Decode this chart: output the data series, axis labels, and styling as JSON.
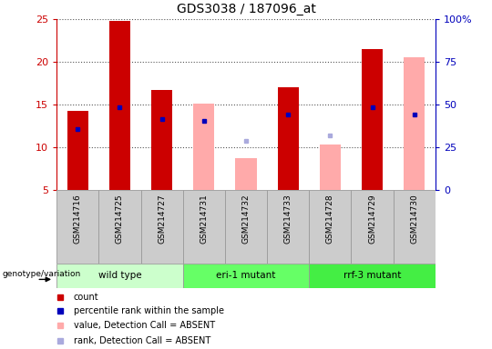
{
  "title": "GDS3038 / 187096_at",
  "samples": [
    "GSM214716",
    "GSM214725",
    "GSM214727",
    "GSM214731",
    "GSM214732",
    "GSM214733",
    "GSM214728",
    "GSM214729",
    "GSM214730"
  ],
  "count_values": [
    14.3,
    24.8,
    16.7,
    null,
    null,
    17.0,
    null,
    21.5,
    null
  ],
  "count_absent": [
    null,
    null,
    null,
    15.1,
    8.7,
    null,
    10.3,
    null,
    20.5
  ],
  "rank_values": [
    12.2,
    14.7,
    13.3,
    13.1,
    null,
    13.8,
    null,
    14.7,
    13.9
  ],
  "rank_absent": [
    null,
    null,
    null,
    null,
    10.8,
    null,
    11.4,
    null,
    null
  ],
  "ylim_left": [
    5,
    25
  ],
  "ylim_right": [
    0,
    100
  ],
  "yticks_left": [
    5,
    10,
    15,
    20,
    25
  ],
  "yticks_right": [
    0,
    25,
    50,
    75,
    100
  ],
  "ytick_labels_right": [
    "0",
    "25",
    "50",
    "75",
    "100%"
  ],
  "bar_width": 0.5,
  "count_color": "#cc0000",
  "count_absent_color": "#ffaaaa",
  "rank_color": "#0000bb",
  "rank_absent_color": "#aaaadd",
  "sample_bg_color": "#cccccc",
  "group_colors": [
    "#ccffcc",
    "#66ff66",
    "#44ee44"
  ],
  "group_names": [
    "wild type",
    "eri-1 mutant",
    "rrf-3 mutant"
  ],
  "group_ranges": [
    [
      0,
      2
    ],
    [
      3,
      5
    ],
    [
      6,
      8
    ]
  ],
  "dotted_line_color": "#555555",
  "axis_color_left": "#cc0000",
  "axis_color_right": "#0000bb",
  "legend_items": [
    {
      "color": "#cc0000",
      "label": "count"
    },
    {
      "color": "#0000bb",
      "label": "percentile rank within the sample"
    },
    {
      "color": "#ffaaaa",
      "label": "value, Detection Call = ABSENT"
    },
    {
      "color": "#aaaadd",
      "label": "rank, Detection Call = ABSENT"
    }
  ]
}
